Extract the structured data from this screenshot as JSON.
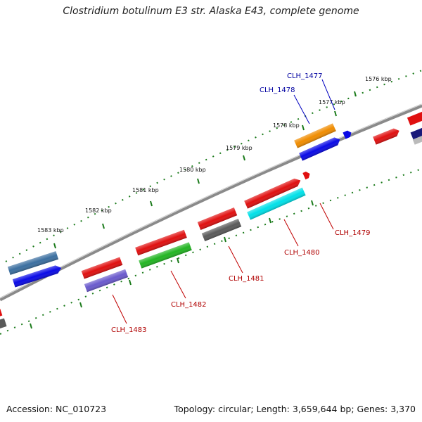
{
  "title": "Clostridium botulinum E3 str. Alaska E43, complete genome",
  "footer": {
    "accession": "Accession: NC_010723",
    "summary": "Topology: circular; Length: 3,659,644 bp; Genes: 3,370"
  },
  "ticks": [
    "1576 kbp",
    "1577 kbp",
    "1578 kbp",
    "1579 kbp",
    "1580 kbp",
    "1581 kbp",
    "1582 kbp",
    "1583 kbp"
  ],
  "gene_labels": {
    "forward": [
      "CLH_1477",
      "CLH_1478"
    ],
    "reverse": [
      "CLH_1479",
      "CLH_1480",
      "CLH_1481",
      "CLH_1482",
      "CLH_1483"
    ]
  },
  "colors": {
    "red": "#e01010",
    "orange": "#f08c00",
    "blue": "#0a0ae6",
    "steel": "#3b6fa0",
    "navy": "#1a1a7a",
    "cyan": "#00e0e8",
    "gray": "#5a5a5a",
    "green": "#22b522",
    "purple": "#6a5acd",
    "backbone": "#777777",
    "tick": "#1a7a1a"
  }
}
